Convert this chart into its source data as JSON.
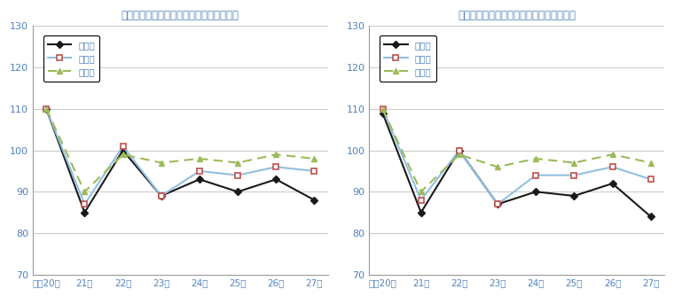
{
  "title1": "福島県・東北・全国の年別生産指数の推移",
  "title2": "福島県・東北・全国の年別出荷指数の推移",
  "x_labels": [
    "平成20年",
    "21年",
    "22年",
    "23年",
    "24年",
    "25年",
    "26年",
    "27年"
  ],
  "legend_labels": [
    "福島県",
    "東　北",
    "全　国"
  ],
  "production": {
    "fukushima": [
      110,
      85,
      100,
      89,
      93,
      90,
      93,
      88
    ],
    "tohoku": [
      110,
      87,
      101,
      89,
      95,
      94,
      96,
      95
    ],
    "zenkoku": [
      110,
      90,
      99,
      97,
      98,
      97,
      99,
      98
    ]
  },
  "shipment": {
    "fukushima": [
      109,
      85,
      100,
      87,
      90,
      89,
      92,
      84
    ],
    "tohoku": [
      110,
      88,
      100,
      87,
      94,
      94,
      96,
      93
    ],
    "zenkoku": [
      110,
      90,
      99,
      96,
      98,
      97,
      99,
      97
    ]
  },
  "ylim": [
    70,
    130
  ],
  "yticks": [
    70,
    80,
    90,
    100,
    110,
    120,
    130
  ],
  "fukushima_color": "#1a1a1a",
  "tohoku_color": "#92c0e0",
  "zenkoku_color": "#9bbb59",
  "marker_edge_color": "#c0504d",
  "background_color": "#ffffff",
  "grid_color": "#c8c8c8",
  "title_color": "#4f81bd",
  "axis_label_color": "#4f81bd",
  "legend_edge_color": "#000000"
}
